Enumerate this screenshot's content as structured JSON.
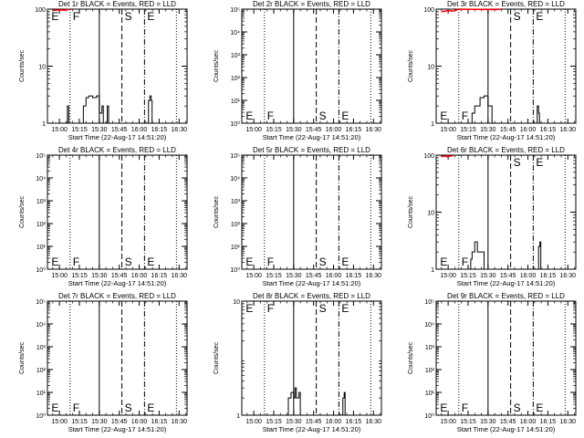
{
  "start_label": "Start Time (22-Aug-17 14:51:20)",
  "ylabel": "Counts/sec",
  "x_ticks": [
    "15:00",
    "15:15",
    "15:30",
    "15:45",
    "16:00",
    "16:15",
    "16:30"
  ],
  "marker_labels": [
    "E",
    "F",
    "S",
    "E"
  ],
  "colors": {
    "events": "#000000",
    "lld": "#ff0000"
  },
  "chart_data": [
    {
      "type": "line",
      "title": "Det 1r BLACK = Events, RED = LLD",
      "scale": "log",
      "yticks": [
        "1",
        "10",
        "100"
      ],
      "ylim": [
        1,
        100
      ],
      "markers": {
        "E1": "14:54",
        "F": "15:08",
        "S": "15:47",
        "E2": "16:04"
      },
      "lld": [
        {
          "x": "14:55",
          "y": 95
        },
        {
          "x": "15:00",
          "y": 97
        },
        {
          "x": "15:04",
          "y": 96
        },
        {
          "x": "15:08",
          "y": 100
        }
      ],
      "series": [
        {
          "x": "15:05",
          "y": 1
        },
        {
          "x": "15:06",
          "y": 2
        },
        {
          "x": "15:07",
          "y": 1
        },
        {
          "x": "15:17",
          "y": 1
        },
        {
          "x": "15:18",
          "y": 2
        },
        {
          "x": "15:20",
          "y": 2.8
        },
        {
          "x": "15:22",
          "y": 3
        },
        {
          "x": "15:25",
          "y": 2.8
        },
        {
          "x": "15:28",
          "y": 3
        },
        {
          "x": "15:30",
          "y": 1.5
        },
        {
          "x": "15:32",
          "y": 2
        },
        {
          "x": "15:33",
          "y": 1
        },
        {
          "x": "15:36",
          "y": 2
        },
        {
          "x": "15:37",
          "y": 1
        },
        {
          "x": "16:06",
          "y": 1
        },
        {
          "x": "16:07",
          "y": 2.5
        },
        {
          "x": "16:08",
          "y": 3
        },
        {
          "x": "16:09",
          "y": 2.5
        }
      ]
    },
    {
      "type": "line",
      "title": "Det 2r BLACK = Events, RED = LLD",
      "scale": "log",
      "yticks": [
        "10⁰",
        "10¹",
        "10²",
        "10³",
        "10⁴",
        "10⁵"
      ],
      "ylim": [
        1,
        100000
      ],
      "markers": {
        "E1": "14:54",
        "F": "15:08",
        "S": "15:47",
        "E2": "16:04"
      },
      "lld": [],
      "series": []
    },
    {
      "type": "line",
      "title": "Det 3r BLACK = Events, RED = LLD",
      "scale": "log",
      "yticks": [
        "1",
        "10",
        "100"
      ],
      "ylim": [
        1,
        100
      ],
      "markers": {
        "E1": "14:54",
        "F": "15:08",
        "S": "15:47",
        "E2": "16:04"
      },
      "lld": [
        {
          "x": "14:55",
          "y": 90
        },
        {
          "x": "15:00",
          "y": 94
        },
        {
          "x": "15:04",
          "y": 92
        },
        {
          "x": "15:08",
          "y": 100
        },
        {
          "x": "15:36",
          "y": 98
        },
        {
          "x": "15:40",
          "y": 100
        }
      ],
      "series": [
        {
          "x": "15:17",
          "y": 1
        },
        {
          "x": "15:18",
          "y": 1.5
        },
        {
          "x": "15:20",
          "y": 2
        },
        {
          "x": "15:24",
          "y": 2.8
        },
        {
          "x": "15:27",
          "y": 3
        },
        {
          "x": "15:30",
          "y": 2
        },
        {
          "x": "15:33",
          "y": 1
        },
        {
          "x": "16:06",
          "y": 1
        },
        {
          "x": "16:07",
          "y": 2
        },
        {
          "x": "16:08",
          "y": 1.5
        }
      ]
    },
    {
      "type": "line",
      "title": "Det 4r BLACK = Events, RED = LLD",
      "scale": "log",
      "yticks": [
        "10⁰",
        "10¹",
        "10²",
        "10³",
        "10⁴",
        "10⁵"
      ],
      "ylim": [
        1,
        100000
      ],
      "markers": {
        "E1": "14:54",
        "F": "15:08",
        "S": "15:47",
        "E2": "16:04"
      },
      "lld": [],
      "series": []
    },
    {
      "type": "line",
      "title": "Det 5r BLACK = Events, RED = LLD",
      "scale": "log",
      "yticks": [
        "10⁰",
        "10¹",
        "10²",
        "10³",
        "10⁴",
        "10⁵"
      ],
      "ylim": [
        1,
        100000
      ],
      "markers": {
        "E1": "14:54",
        "F": "15:08",
        "S": "15:47",
        "E2": "16:04"
      },
      "lld": [],
      "series": []
    },
    {
      "type": "line",
      "title": "Det 6r BLACK = Events, RED = LLD",
      "scale": "log",
      "yticks": [
        "1",
        "10",
        "100"
      ],
      "ylim": [
        1,
        100
      ],
      "markers": {
        "E1": "14:54",
        "F": "15:08",
        "S": "15:47",
        "E2": "16:04"
      },
      "lld": [
        {
          "x": "14:55",
          "y": 96
        },
        {
          "x": "15:00",
          "y": 94
        },
        {
          "x": "15:04",
          "y": 98
        }
      ],
      "series": [
        {
          "x": "15:16",
          "y": 1
        },
        {
          "x": "15:17",
          "y": 1.5
        },
        {
          "x": "15:18",
          "y": 2
        },
        {
          "x": "15:20",
          "y": 3
        },
        {
          "x": "15:22",
          "y": 2
        },
        {
          "x": "15:25",
          "y": 2
        },
        {
          "x": "15:27",
          "y": 1
        },
        {
          "x": "16:07",
          "y": 1
        },
        {
          "x": "16:08",
          "y": 2.5
        },
        {
          "x": "16:09",
          "y": 3
        }
      ]
    },
    {
      "type": "line",
      "title": "Det 7r BLACK = Events, RED = LLD",
      "scale": "log",
      "yticks": [
        "10⁰",
        "10¹",
        "10²",
        "10³",
        "10⁴",
        "10⁵"
      ],
      "ylim": [
        1,
        100000
      ],
      "markers": {
        "E1": "14:54",
        "F": "15:08",
        "S": "15:47",
        "E2": "16:04"
      },
      "lld": [],
      "series": []
    },
    {
      "type": "line",
      "title": "Det 8r BLACK = Events, RED = LLD",
      "scale": "log",
      "yticks": [
        "1",
        "10"
      ],
      "ylim": [
        1,
        100
      ],
      "markers": {
        "E1": "14:54",
        "F": "15:08",
        "S": "15:47",
        "E2": "16:04"
      },
      "lld": [],
      "series": [
        {
          "x": "15:25",
          "y": 1
        },
        {
          "x": "15:26",
          "y": 2
        },
        {
          "x": "15:28",
          "y": 2.5
        },
        {
          "x": "15:30",
          "y": 2
        },
        {
          "x": "15:31",
          "y": 3
        },
        {
          "x": "15:32",
          "y": 2
        },
        {
          "x": "15:34",
          "y": 2.5
        },
        {
          "x": "15:35",
          "y": 1
        },
        {
          "x": "16:06",
          "y": 1
        },
        {
          "x": "16:07",
          "y": 2
        },
        {
          "x": "16:08",
          "y": 2.5
        }
      ]
    },
    {
      "type": "line",
      "title": "Det 9r BLACK = Events, RED = LLD",
      "scale": "log",
      "yticks": [
        "10⁰",
        "10¹",
        "10²",
        "10³",
        "10⁴",
        "10⁵"
      ],
      "ylim": [
        1,
        100000
      ],
      "markers": {
        "E1": "14:54",
        "F": "15:08",
        "S": "15:47",
        "E2": "16:04"
      },
      "lld": [],
      "series": []
    }
  ]
}
